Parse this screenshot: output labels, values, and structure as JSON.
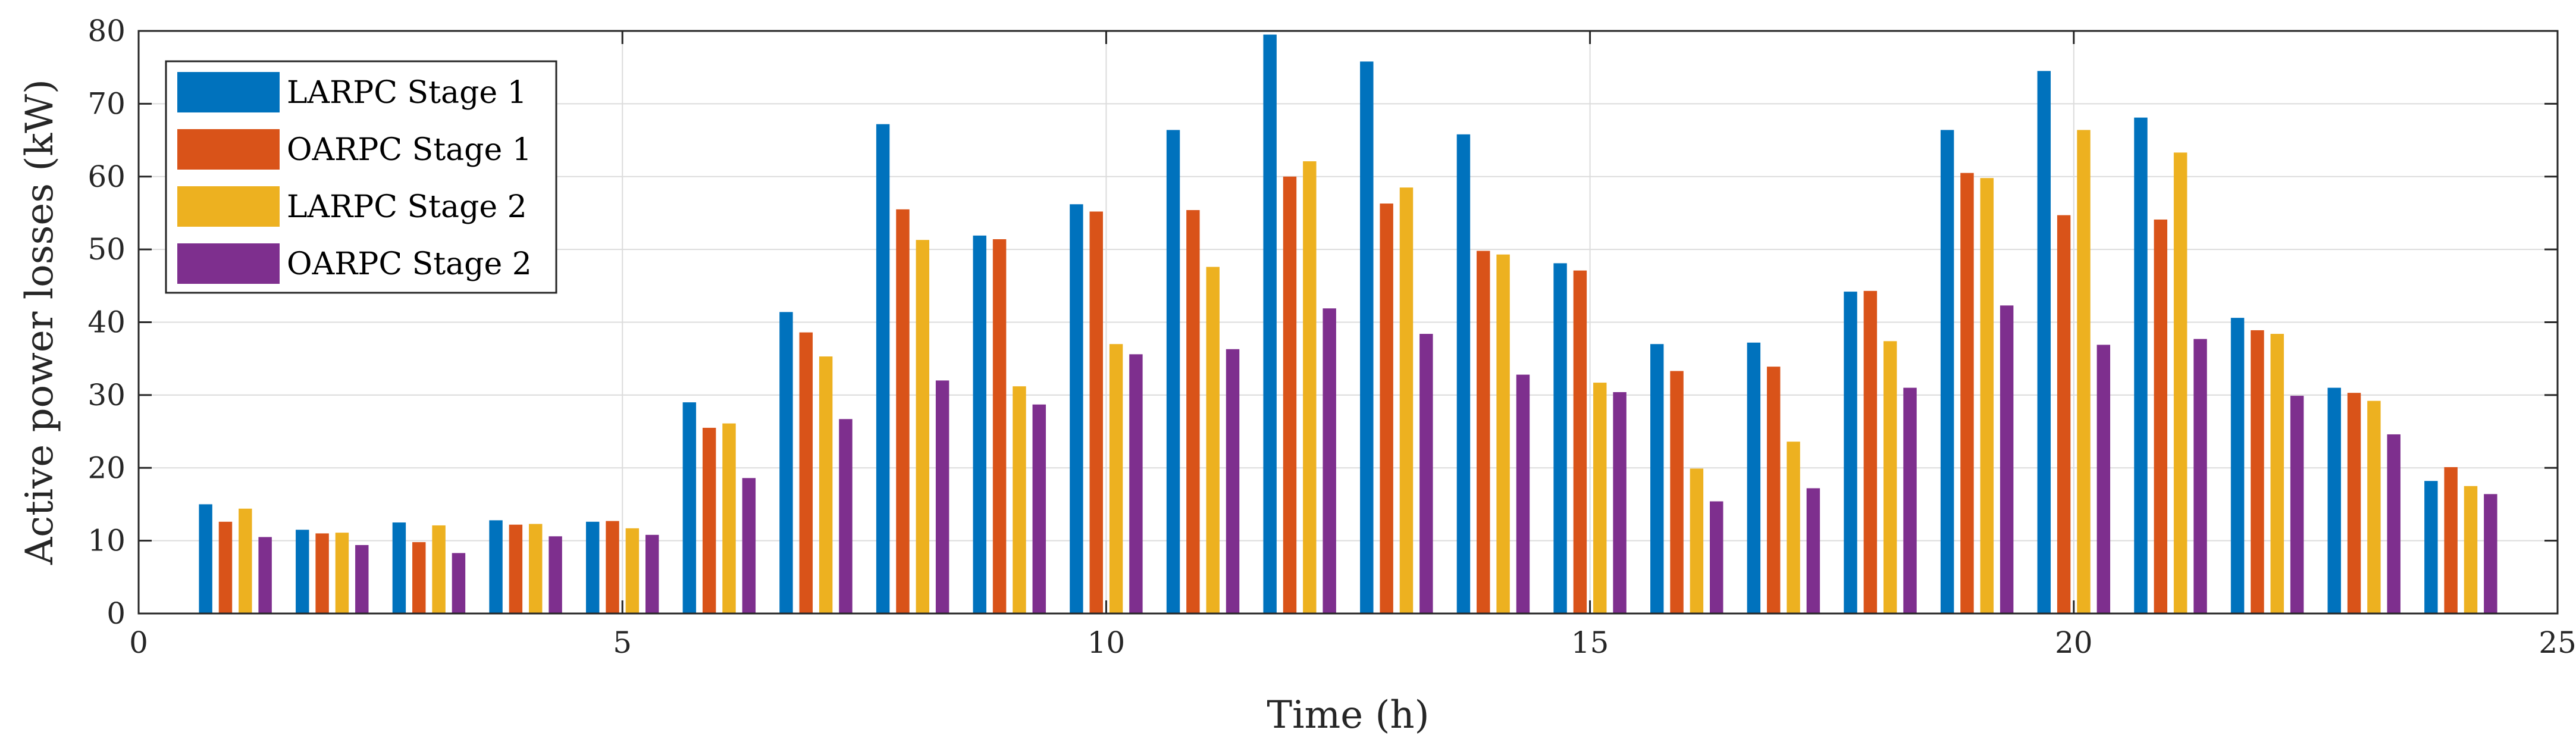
{
  "chart_data": {
    "type": "bar",
    "title": "",
    "xlabel": "Time (h)",
    "ylabel": "Active power losses (kW)",
    "xlim": [
      0,
      25
    ],
    "ylim": [
      0,
      80
    ],
    "xticks": [
      0,
      5,
      10,
      15,
      20,
      25
    ],
    "yticks": [
      0,
      10,
      20,
      30,
      40,
      50,
      60,
      70,
      80
    ],
    "grid": true,
    "legend_position": "top-left",
    "categories": [
      1,
      2,
      3,
      4,
      5,
      6,
      7,
      8,
      9,
      10,
      11,
      12,
      13,
      14,
      15,
      16,
      17,
      18,
      19,
      20,
      21,
      22,
      23,
      24
    ],
    "series": [
      {
        "name": "LARPC Stage 1",
        "color": "#0072BD",
        "values": [
          15.0,
          11.5,
          12.5,
          12.8,
          12.6,
          29.0,
          41.4,
          67.2,
          51.9,
          56.2,
          66.4,
          79.5,
          75.8,
          65.8,
          48.1,
          37.0,
          37.2,
          44.2,
          66.4,
          74.5,
          68.1,
          40.6,
          31.0,
          18.2
        ]
      },
      {
        "name": "OARPC Stage 1",
        "color": "#D95319",
        "values": [
          12.6,
          11.0,
          9.8,
          12.2,
          12.7,
          25.5,
          38.6,
          55.5,
          51.4,
          55.2,
          55.4,
          60.0,
          56.3,
          49.8,
          47.1,
          33.3,
          33.9,
          44.3,
          60.5,
          54.7,
          54.1,
          38.9,
          30.3,
          20.1
        ]
      },
      {
        "name": "LARPC Stage 2",
        "color": "#EDB120",
        "values": [
          14.4,
          11.1,
          12.1,
          12.3,
          11.7,
          26.1,
          35.3,
          51.3,
          31.2,
          37.0,
          47.6,
          62.1,
          58.5,
          49.3,
          31.7,
          19.9,
          23.6,
          37.4,
          59.8,
          66.4,
          63.3,
          38.4,
          29.2,
          17.5
        ]
      },
      {
        "name": "OARPC Stage 2",
        "color": "#7E2F8E",
        "values": [
          10.5,
          9.4,
          8.3,
          10.6,
          10.8,
          18.6,
          26.7,
          32.0,
          28.7,
          35.6,
          36.3,
          41.9,
          38.4,
          32.8,
          30.4,
          15.4,
          17.2,
          31.0,
          42.3,
          36.9,
          37.7,
          29.9,
          24.6,
          16.4
        ]
      }
    ]
  }
}
